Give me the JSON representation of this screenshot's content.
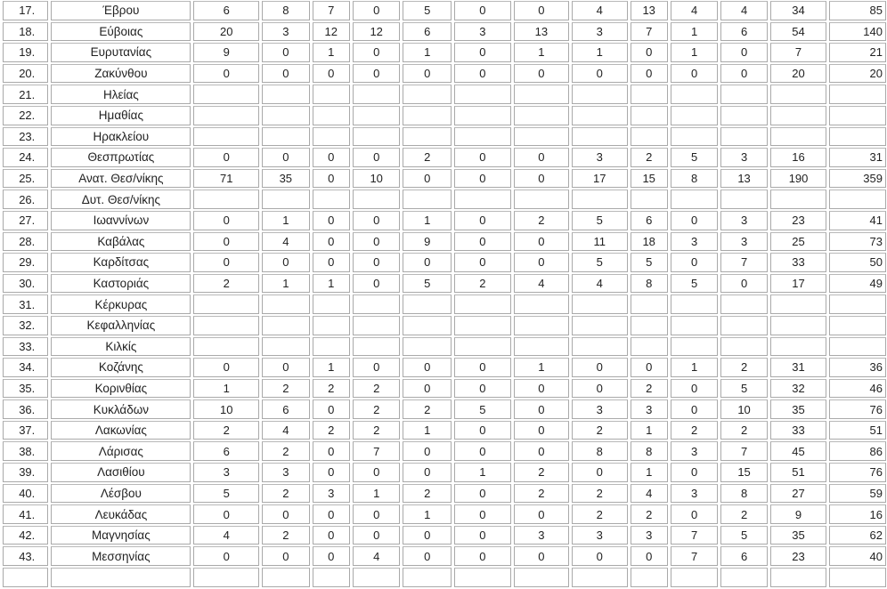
{
  "table": {
    "rows": [
      {
        "no": "17.",
        "name": "Έβρου",
        "values": [
          "6",
          "8",
          "7",
          "0",
          "5",
          "0",
          "0",
          "4",
          "13",
          "4",
          "4",
          "34",
          "85"
        ]
      },
      {
        "no": "18.",
        "name": "Εύβοιας",
        "values": [
          "20",
          "3",
          "12",
          "12",
          "6",
          "3",
          "13",
          "3",
          "7",
          "1",
          "6",
          "54",
          "140"
        ]
      },
      {
        "no": "19.",
        "name": "Ευρυτανίας",
        "values": [
          "9",
          "0",
          "1",
          "0",
          "1",
          "0",
          "1",
          "1",
          "0",
          "1",
          "0",
          "7",
          "21"
        ]
      },
      {
        "no": "20.",
        "name": "Ζακύνθου",
        "values": [
          "0",
          "0",
          "0",
          "0",
          "0",
          "0",
          "0",
          "0",
          "0",
          "0",
          "0",
          "20",
          "20"
        ]
      },
      {
        "no": "21.",
        "name": "Ηλείας",
        "values": [
          "",
          "",
          "",
          "",
          "",
          "",
          "",
          "",
          "",
          "",
          "",
          "",
          ""
        ]
      },
      {
        "no": "22.",
        "name": "Ημαθίας",
        "values": [
          "",
          "",
          "",
          "",
          "",
          "",
          "",
          "",
          "",
          "",
          "",
          "",
          ""
        ]
      },
      {
        "no": "23.",
        "name": "Ηρακλείου",
        "values": [
          "",
          "",
          "",
          "",
          "",
          "",
          "",
          "",
          "",
          "",
          "",
          "",
          ""
        ]
      },
      {
        "no": "24.",
        "name": "Θεσπρωτίας",
        "values": [
          "0",
          "0",
          "0",
          "0",
          "2",
          "0",
          "0",
          "3",
          "2",
          "5",
          "3",
          "16",
          "31"
        ]
      },
      {
        "no": "25.",
        "name": "Ανατ. Θεσ/νίκης",
        "values": [
          "71",
          "35",
          "0",
          "10",
          "0",
          "0",
          "0",
          "17",
          "15",
          "8",
          "13",
          "190",
          "359"
        ]
      },
      {
        "no": "26.",
        "name": "Δυτ. Θεσ/νίκης",
        "values": [
          "",
          "",
          "",
          "",
          "",
          "",
          "",
          "",
          "",
          "",
          "",
          "",
          ""
        ]
      },
      {
        "no": "27.",
        "name": "Ιωαννίνων",
        "values": [
          "0",
          "1",
          "0",
          "0",
          "1",
          "0",
          "2",
          "5",
          "6",
          "0",
          "3",
          "23",
          "41"
        ]
      },
      {
        "no": "28.",
        "name": "Καβάλας",
        "values": [
          "0",
          "4",
          "0",
          "0",
          "9",
          "0",
          "0",
          "11",
          "18",
          "3",
          "3",
          "25",
          "73"
        ]
      },
      {
        "no": "29.",
        "name": "Καρδίτσας",
        "values": [
          "0",
          "0",
          "0",
          "0",
          "0",
          "0",
          "0",
          "5",
          "5",
          "0",
          "7",
          "33",
          "50"
        ]
      },
      {
        "no": "30.",
        "name": "Καστοριάς",
        "values": [
          "2",
          "1",
          "1",
          "0",
          "5",
          "2",
          "4",
          "4",
          "8",
          "5",
          "0",
          "17",
          "49"
        ]
      },
      {
        "no": "31.",
        "name": "Κέρκυρας",
        "values": [
          "",
          "",
          "",
          "",
          "",
          "",
          "",
          "",
          "",
          "",
          "",
          "",
          ""
        ]
      },
      {
        "no": "32.",
        "name": "Κεφαλληνίας",
        "values": [
          "",
          "",
          "",
          "",
          "",
          "",
          "",
          "",
          "",
          "",
          "",
          "",
          ""
        ]
      },
      {
        "no": "33.",
        "name": "Κιλκίς",
        "values": [
          "",
          "",
          "",
          "",
          "",
          "",
          "",
          "",
          "",
          "",
          "",
          "",
          ""
        ]
      },
      {
        "no": "34.",
        "name": "Κοζάνης",
        "values": [
          "0",
          "0",
          "1",
          "0",
          "0",
          "0",
          "1",
          "0",
          "0",
          "1",
          "2",
          "31",
          "36"
        ]
      },
      {
        "no": "35.",
        "name": "Κορινθίας",
        "values": [
          "1",
          "2",
          "2",
          "2",
          "0",
          "0",
          "0",
          "0",
          "2",
          "0",
          "5",
          "32",
          "46"
        ]
      },
      {
        "no": "36.",
        "name": "Κυκλάδων",
        "values": [
          "10",
          "6",
          "0",
          "2",
          "2",
          "5",
          "0",
          "3",
          "3",
          "0",
          "10",
          "35",
          "76"
        ]
      },
      {
        "no": "37.",
        "name": "Λακωνίας",
        "values": [
          "2",
          "4",
          "2",
          "2",
          "1",
          "0",
          "0",
          "2",
          "1",
          "2",
          "2",
          "33",
          "51"
        ]
      },
      {
        "no": "38.",
        "name": "Λάρισας",
        "values": [
          "6",
          "2",
          "0",
          "7",
          "0",
          "0",
          "0",
          "8",
          "8",
          "3",
          "7",
          "45",
          "86"
        ]
      },
      {
        "no": "39.",
        "name": "Λασιθίου",
        "values": [
          "3",
          "3",
          "0",
          "0",
          "0",
          "1",
          "2",
          "0",
          "1",
          "0",
          "15",
          "51",
          "76"
        ]
      },
      {
        "no": "40.",
        "name": "Λέσβου",
        "values": [
          "5",
          "2",
          "3",
          "1",
          "2",
          "0",
          "2",
          "2",
          "4",
          "3",
          "8",
          "27",
          "59"
        ]
      },
      {
        "no": "41.",
        "name": "Λευκάδας",
        "values": [
          "0",
          "0",
          "0",
          "0",
          "1",
          "0",
          "0",
          "2",
          "2",
          "0",
          "2",
          "9",
          "16"
        ]
      },
      {
        "no": "42.",
        "name": "Μαγνησίας",
        "values": [
          "4",
          "2",
          "0",
          "0",
          "0",
          "0",
          "3",
          "3",
          "3",
          "7",
          "5",
          "35",
          "62"
        ]
      },
      {
        "no": "43.",
        "name": "Μεσσηνίας",
        "values": [
          "0",
          "0",
          "0",
          "4",
          "0",
          "0",
          "0",
          "0",
          "0",
          "7",
          "6",
          "23",
          "40"
        ]
      },
      {
        "no": "",
        "name": "",
        "values": [
          "",
          "",
          "",
          "",
          "",
          "",
          "",
          "",
          "",
          "",
          "",
          "",
          ""
        ]
      }
    ]
  }
}
